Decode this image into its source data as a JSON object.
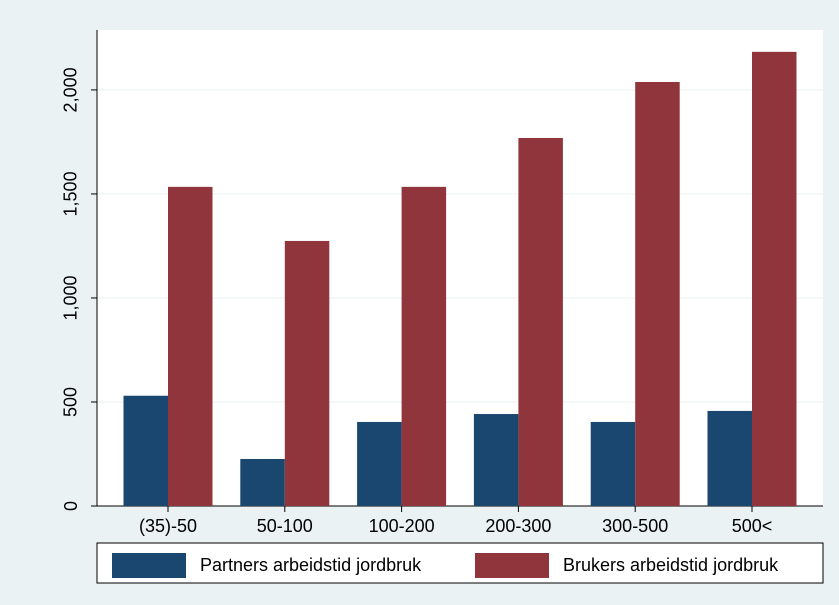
{
  "chart_data": {
    "type": "bar",
    "categories": [
      "(35)-50",
      "50-100",
      "100-200",
      "200-300",
      "300-500",
      "500<"
    ],
    "series": [
      {
        "name": "Partners arbeidstid jordbruk",
        "color": "#1a476f",
        "values": [
          530,
          226,
          404,
          442,
          404,
          457
        ]
      },
      {
        "name": "Brukers arbeidstid jordbruk",
        "color": "#90353b",
        "values": [
          1534,
          1274,
          1534,
          1769,
          2038,
          2183
        ]
      }
    ],
    "ylim": [
      0,
      2288
    ],
    "yticks": [
      0,
      500,
      {
        "value": 1000,
        "label": "1,000"
      },
      {
        "value": 1500,
        "label": "1,500"
      },
      {
        "value": 2000,
        "label": "2,000"
      }
    ],
    "grid": true,
    "legend": "bottom"
  }
}
